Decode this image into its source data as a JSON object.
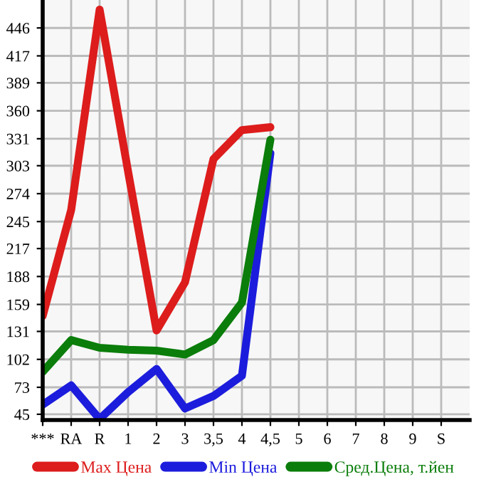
{
  "chart_data": {
    "type": "line",
    "categories": [
      "***",
      "RA",
      "R",
      "1",
      "2",
      "3",
      "3,5",
      "4",
      "4,5",
      "5",
      "6",
      "7",
      "8",
      "9",
      "S"
    ],
    "series": [
      {
        "name": "Max Цена",
        "color": "#dd1c1c",
        "values": [
          147,
          257,
          465,
          297,
          132,
          182,
          310,
          340,
          343,
          null,
          null,
          null,
          null,
          null,
          null
        ]
      },
      {
        "name": "Min Цена",
        "color": "#1c1cdd",
        "values": [
          55,
          75,
          40,
          68,
          92,
          51,
          64,
          85,
          316,
          null,
          null,
          null,
          null,
          null,
          null
        ]
      },
      {
        "name": "Сред.Цена, т.йен",
        "color": "#0a7d0a",
        "values": [
          89,
          122,
          114,
          112,
          111,
          107,
          122,
          161,
          330,
          null,
          null,
          null,
          null,
          null,
          null
        ]
      }
    ],
    "ylim": [
      39,
      475
    ],
    "yticks": [
      45,
      73,
      102,
      131,
      159,
      188,
      217,
      245,
      274,
      303,
      331,
      360,
      389,
      417,
      446
    ],
    "grid": true,
    "legend": "bottom",
    "marker": "none",
    "line_style": "solid"
  }
}
